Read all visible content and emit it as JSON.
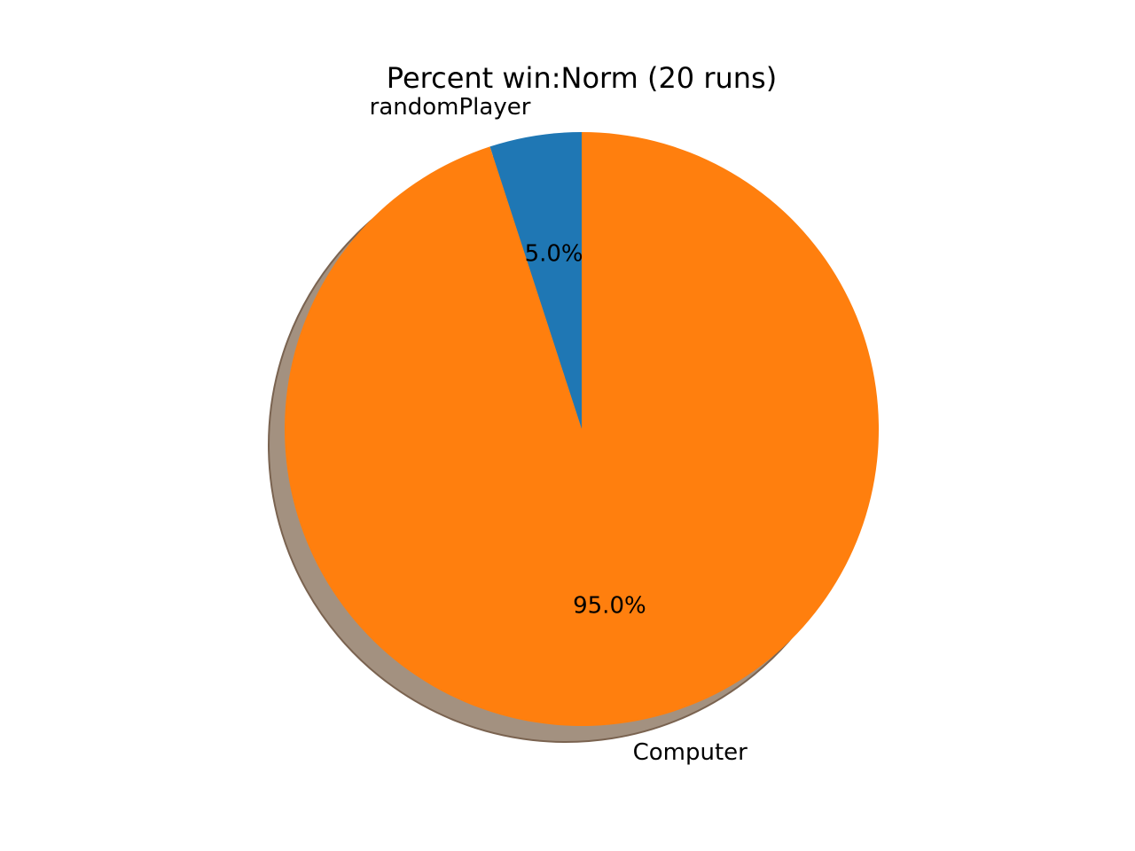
{
  "chart_data": {
    "type": "pie",
    "title": "Percent win:Norm (20 runs)",
    "shadow": true,
    "start_angle_deg": 90,
    "direction": "counterclockwise",
    "slices": [
      {
        "label": "randomPlayer",
        "value": 5.0,
        "pct_label": "5.0%",
        "color": "#1f77b4"
      },
      {
        "label": "Computer",
        "value": 95.0,
        "pct_label": "95.0%",
        "color": "#ff7f0e"
      }
    ],
    "shadow_color": "#a39180"
  }
}
